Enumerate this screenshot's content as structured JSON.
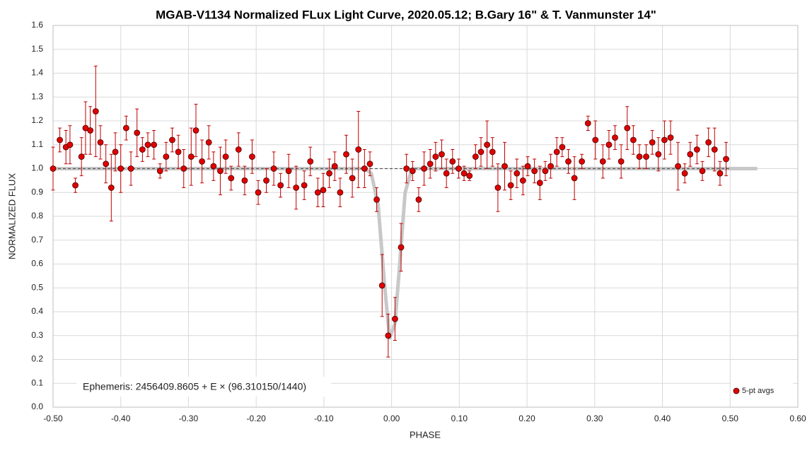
{
  "chart_data": {
    "type": "scatter",
    "title": "MGAB-V1134 Normalized FLux Light Curve, 2020.05.12; B.Gary 16\" & T. Vanmunster 14\"",
    "x_label": "PHASE",
    "y_label": "NORMALIZED FLUX",
    "annotation": "Ephemeris: 2456409.8605 + E × (96.310150/1440)",
    "xlim": [
      -0.5,
      0.6
    ],
    "ylim": [
      0,
      1.6
    ],
    "xticks": [
      {
        "value": -0.5,
        "label": "-0.50"
      },
      {
        "value": -0.4,
        "label": "-0.40"
      },
      {
        "value": -0.3,
        "label": "-0.30"
      },
      {
        "value": -0.2,
        "label": "-0.20"
      },
      {
        "value": -0.1,
        "label": "-0.10"
      },
      {
        "value": 0,
        "label": "0.00"
      },
      {
        "value": 0.1,
        "label": "0.10"
      },
      {
        "value": 0.2,
        "label": "0.20"
      },
      {
        "value": 0.3,
        "label": "0.30"
      },
      {
        "value": 0.4,
        "label": "0.40"
      },
      {
        "value": 0.5,
        "label": "0.50"
      },
      {
        "value": 0.6,
        "label": "0.60"
      }
    ],
    "yticks": [
      {
        "value": 0,
        "label": "0.0"
      },
      0.1,
      0.2,
      0.3,
      0.4,
      0.5,
      0.6,
      0.7,
      0.8,
      0.9,
      {
        "value": 1,
        "label": "1.0"
      },
      1.1,
      1.2,
      1.3,
      1.4,
      1.5,
      1.6
    ],
    "grid": true,
    "legend": "lower right",
    "series": [
      {
        "name": "5-pt avgs",
        "color": "#e00000",
        "x": [
          -0.5,
          -0.49,
          -0.481,
          -0.475,
          -0.467,
          -0.458,
          -0.452,
          -0.445,
          -0.437,
          -0.43,
          -0.422,
          -0.414,
          -0.408,
          -0.4,
          -0.392,
          -0.385,
          -0.376,
          -0.368,
          -0.36,
          -0.351,
          -0.342,
          -0.333,
          -0.324,
          -0.315,
          -0.307,
          -0.296,
          -0.289,
          -0.28,
          -0.27,
          -0.263,
          -0.253,
          -0.245,
          -0.237,
          -0.226,
          -0.217,
          -0.206,
          -0.197,
          -0.185,
          -0.174,
          -0.164,
          -0.152,
          -0.141,
          -0.129,
          -0.12,
          -0.109,
          -0.101,
          -0.092,
          -0.084,
          -0.076,
          -0.067,
          -0.058,
          -0.049,
          -0.04,
          -0.032,
          -0.022,
          -0.014,
          -0.005,
          0.005,
          0.014,
          0.022,
          0.031,
          0.04,
          0.048,
          0.057,
          0.065,
          0.074,
          0.081,
          0.09,
          0.099,
          0.107,
          0.115,
          0.124,
          0.132,
          0.141,
          0.149,
          0.157,
          0.167,
          0.176,
          0.185,
          0.194,
          0.201,
          0.211,
          0.219,
          0.227,
          0.235,
          0.244,
          0.252,
          0.261,
          0.27,
          0.281,
          0.29,
          0.301,
          0.312,
          0.321,
          0.33,
          0.339,
          0.348,
          0.357,
          0.366,
          0.376,
          0.385,
          0.394,
          0.403,
          0.412,
          0.423,
          0.433,
          0.441,
          0.451,
          0.459,
          0.468,
          0.477,
          0.485,
          0.494
        ],
        "values": [
          1.0,
          1.12,
          1.09,
          1.1,
          0.93,
          1.05,
          1.17,
          1.16,
          1.24,
          1.11,
          1.02,
          0.92,
          1.07,
          1.0,
          1.17,
          1.0,
          1.15,
          1.08,
          1.1,
          1.1,
          0.99,
          1.05,
          1.12,
          1.07,
          1.0,
          1.05,
          1.16,
          1.03,
          1.11,
          1.01,
          0.99,
          1.05,
          0.96,
          1.08,
          0.95,
          1.05,
          0.9,
          0.95,
          1.0,
          0.93,
          0.99,
          0.92,
          0.93,
          1.03,
          0.9,
          0.91,
          0.98,
          1.01,
          0.9,
          1.06,
          0.96,
          1.08,
          1.0,
          1.02,
          0.87,
          0.51,
          0.3,
          0.37,
          0.67,
          1.0,
          0.99,
          0.87,
          1.0,
          1.02,
          1.05,
          1.06,
          0.98,
          1.03,
          1.0,
          0.98,
          0.97,
          1.05,
          1.07,
          1.1,
          1.07,
          0.92,
          1.01,
          0.93,
          0.98,
          0.95,
          1.01,
          0.99,
          0.94,
          0.99,
          1.01,
          1.07,
          1.09,
          1.03,
          0.96,
          1.03,
          1.19,
          1.12,
          1.03,
          1.1,
          1.13,
          1.03,
          1.17,
          1.12,
          1.05,
          1.05,
          1.11,
          1.06,
          1.12,
          1.13,
          1.01,
          0.98,
          1.06,
          1.08,
          0.99,
          1.11,
          1.08,
          0.98,
          1.04
        ],
        "errors": [
          0.09,
          0.05,
          0.07,
          0.08,
          0.03,
          0.08,
          0.11,
          0.1,
          0.19,
          0.07,
          0.08,
          0.14,
          0.08,
          0.1,
          0.05,
          0.07,
          0.1,
          0.05,
          0.05,
          0.06,
          0.03,
          0.06,
          0.05,
          0.07,
          0.08,
          0.12,
          0.11,
          0.09,
          0.07,
          0.06,
          0.1,
          0.07,
          0.05,
          0.07,
          0.06,
          0.07,
          0.05,
          0.05,
          0.07,
          0.05,
          0.07,
          0.09,
          0.06,
          0.06,
          0.06,
          0.07,
          0.06,
          0.06,
          0.06,
          0.08,
          0.08,
          0.16,
          0.08,
          0.05,
          0.05,
          0.13,
          0.09,
          0.09,
          0.1,
          0.06,
          0.04,
          0.05,
          0.07,
          0.06,
          0.06,
          0.06,
          0.06,
          0.05,
          0.04,
          0.03,
          0.02,
          0.05,
          0.06,
          0.1,
          0.06,
          0.1,
          0.1,
          0.06,
          0.06,
          0.06,
          0.04,
          0.05,
          0.07,
          0.04,
          0.05,
          0.06,
          0.04,
          0.05,
          0.09,
          0.03,
          0.03,
          0.08,
          0.07,
          0.06,
          0.05,
          0.07,
          0.09,
          0.06,
          0.05,
          0.05,
          0.05,
          0.07,
          0.08,
          0.07,
          0.1,
          0.04,
          0.05,
          0.06,
          0.04,
          0.06,
          0.09,
          0.05,
          0.07
        ]
      },
      {
        "color": "#c8c8c8",
        "style": "solid",
        "x": [
          -0.5,
          -0.04,
          -0.03,
          -0.02,
          -0.01,
          -0.003,
          0.005,
          0.012,
          0.02,
          0.03,
          0.54
        ],
        "values": [
          1,
          1,
          0.98,
          0.85,
          0.5,
          0.29,
          0.35,
          0.6,
          0.9,
          1,
          1
        ]
      },
      {
        "color": "#555555",
        "style": "dashed",
        "x": [
          -0.5,
          0.5
        ],
        "values": [
          1,
          1
        ]
      }
    ]
  }
}
